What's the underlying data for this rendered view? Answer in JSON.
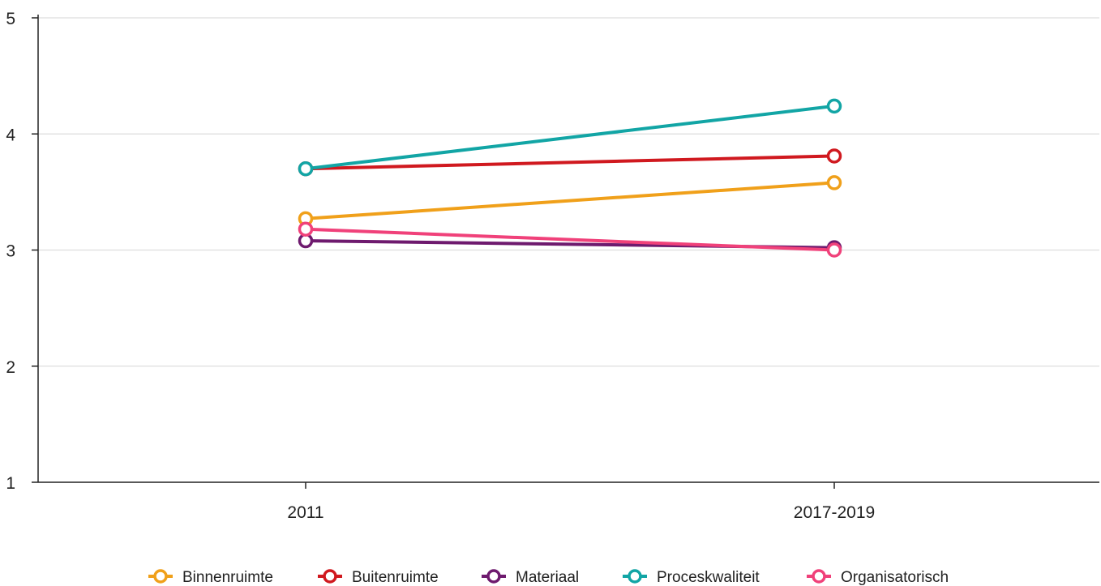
{
  "chart_data": {
    "type": "line",
    "x": [
      "2011",
      "2017-2019"
    ],
    "ylim": [
      1,
      5
    ],
    "yticks": [
      "1",
      "2",
      "3",
      "4",
      "5"
    ],
    "grid": true,
    "legend_position": "bottom",
    "series": [
      {
        "name": "Binnenruimte",
        "values": [
          3.27,
          3.58
        ],
        "color": "#f0a01a"
      },
      {
        "name": "Buitenruimte",
        "values": [
          3.7,
          3.81
        ],
        "color": "#d0191f"
      },
      {
        "name": "Materiaal",
        "values": [
          3.08,
          3.02
        ],
        "color": "#6e1a6e"
      },
      {
        "name": "Proceskwaliteit",
        "values": [
          3.7,
          4.24
        ],
        "color": "#12a5a5"
      },
      {
        "name": "Organisatorisch",
        "values": [
          3.18,
          3.0
        ],
        "color": "#f0417a"
      }
    ]
  }
}
